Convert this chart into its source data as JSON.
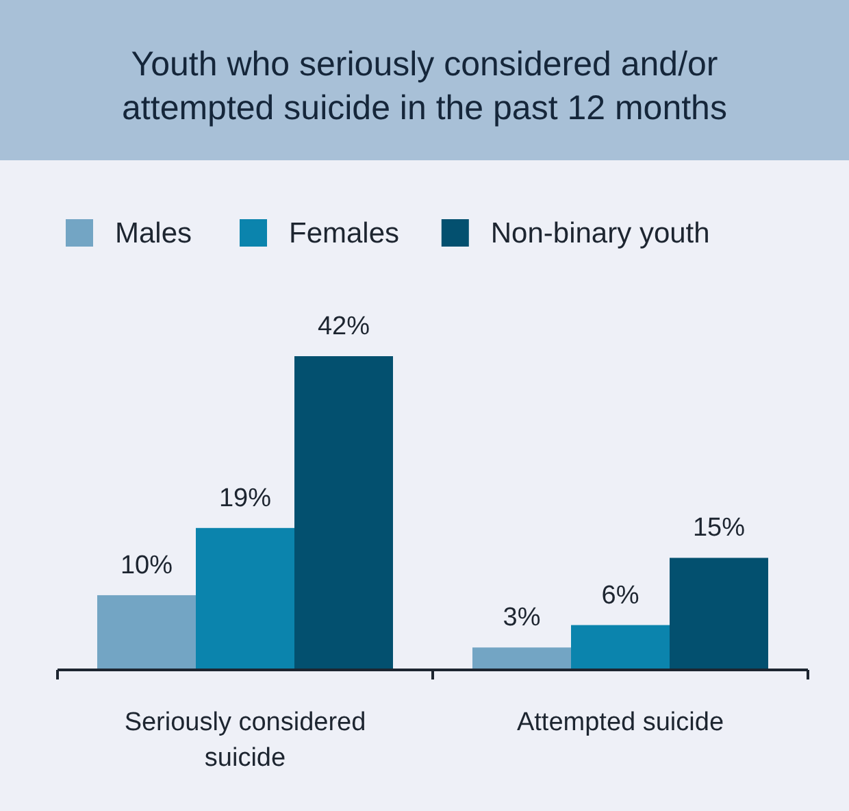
{
  "chart_data": {
    "type": "bar",
    "title": "Youth who seriously considered and/or attempted suicide in the past 12 months",
    "categories": [
      "Seriously considered suicide",
      "Attempted suicide"
    ],
    "series": [
      {
        "name": "Males",
        "color": "#73a5c4",
        "values": [
          10,
          3
        ],
        "value_labels": [
          "10%",
          "3%"
        ]
      },
      {
        "name": "Females",
        "color": "#0b84ad",
        "values": [
          19,
          6
        ],
        "value_labels": [
          "19%",
          "6%"
        ]
      },
      {
        "name": "Non-binary youth",
        "color": "#03506f",
        "values": [
          42,
          15
        ],
        "value_labels": [
          "42%",
          "15%"
        ]
      }
    ],
    "legend": "top"
  }
}
